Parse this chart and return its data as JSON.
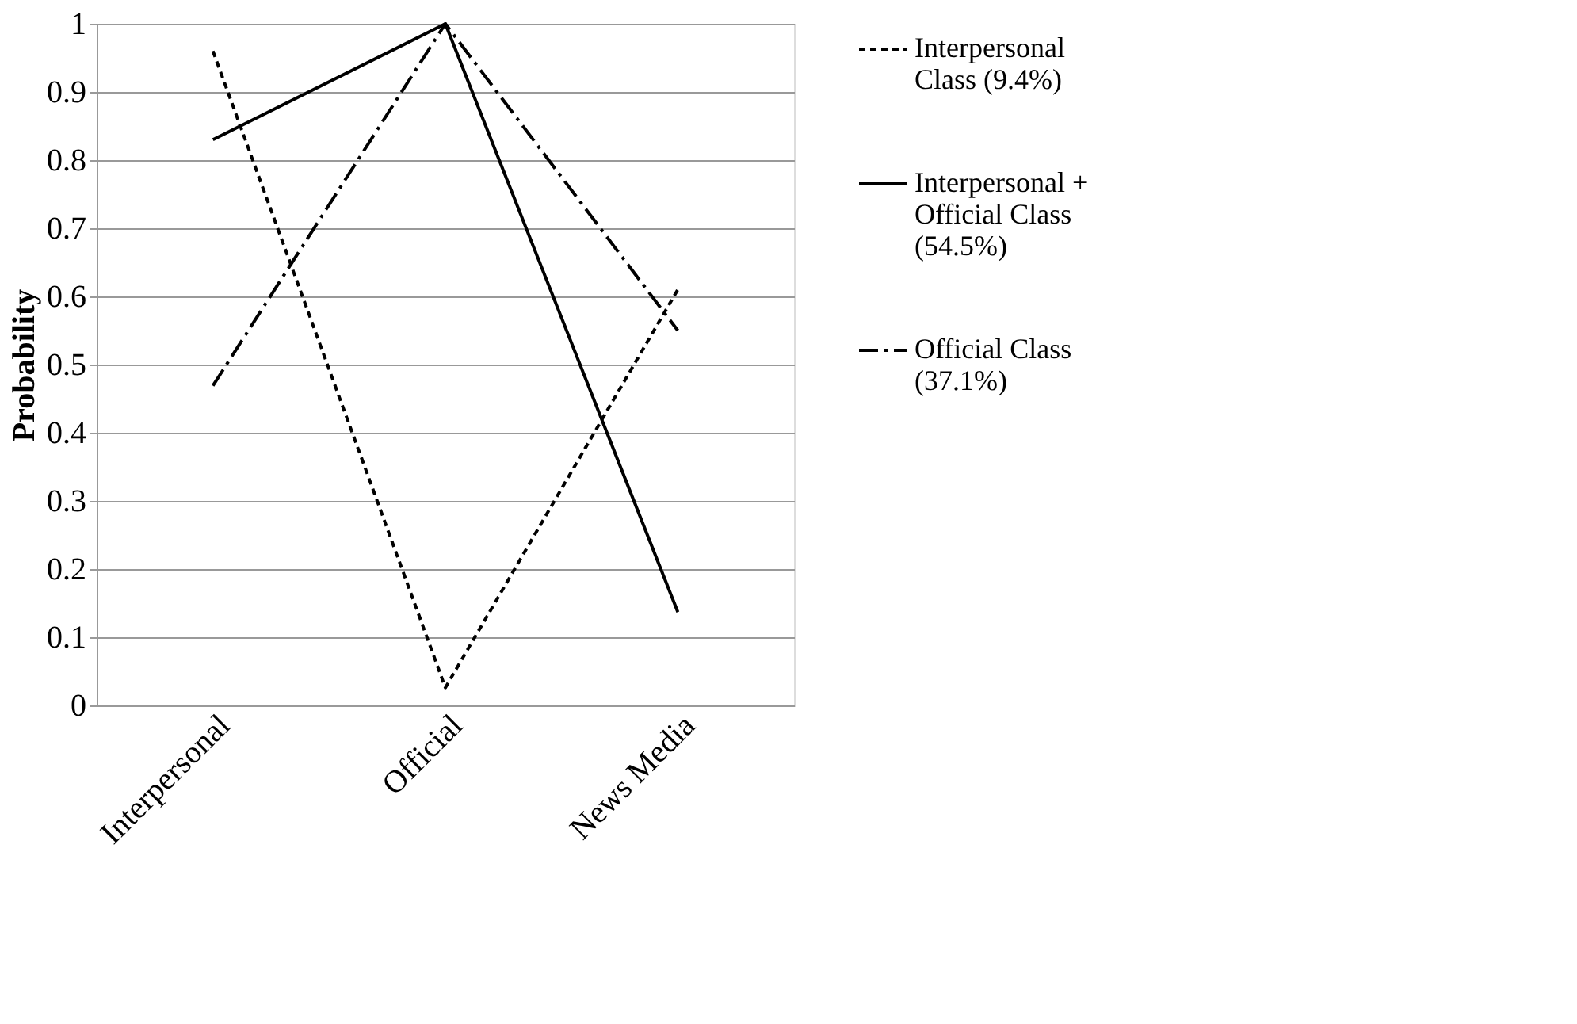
{
  "chart_data": {
    "type": "line",
    "ylabel": "Probability",
    "categories": [
      "Interpersonal",
      "Official",
      "News Media"
    ],
    "series": [
      {
        "name": "Interpersonal Class (9.4%)",
        "color": "#000000",
        "line_style": "dashed",
        "values": [
          0.96,
          0.026,
          0.61
        ]
      },
      {
        "name": "Interpersonal + Official Class (54.5%)",
        "color": "#000000",
        "line_style": "solid",
        "values": [
          0.83,
          1.0,
          0.137
        ]
      },
      {
        "name": "Official Class (37.1%)",
        "color": "#000000",
        "line_style": "dashdot",
        "values": [
          0.469,
          1.0,
          0.55
        ]
      }
    ],
    "ylim": [
      0,
      1
    ],
    "yticks": [
      0,
      0.1,
      0.2,
      0.3,
      0.4,
      0.5,
      0.6,
      0.7,
      0.8,
      0.9,
      1
    ],
    "grid": "y",
    "legend": "right",
    "marker": "none"
  }
}
